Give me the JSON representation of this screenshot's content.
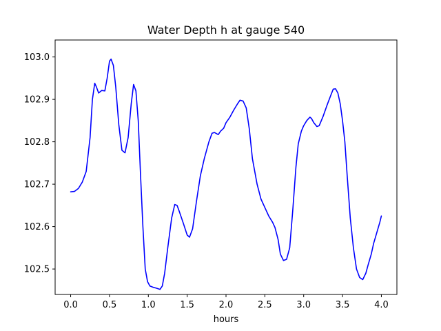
{
  "chart_data": {
    "type": "line",
    "title": "Water Depth h at gauge 540",
    "xlabel": "hours",
    "ylabel": "",
    "xlim": [
      -0.2,
      4.2
    ],
    "ylim": [
      102.44,
      103.04
    ],
    "grid": false,
    "line_color": "#0000ff",
    "xticks": [
      0.0,
      0.5,
      1.0,
      1.5,
      2.0,
      2.5,
      3.0,
      3.5,
      4.0
    ],
    "xtick_labels": [
      "0.0",
      "0.5",
      "1.0",
      "1.5",
      "2.0",
      "2.5",
      "3.0",
      "3.5",
      "4.0"
    ],
    "yticks": [
      102.5,
      102.6,
      102.7,
      102.8,
      102.9,
      103.0
    ],
    "ytick_labels": [
      "102.5",
      "102.6",
      "102.7",
      "102.8",
      "102.9",
      "103.0"
    ],
    "series": [
      {
        "x": [
          0.0,
          0.05,
          0.1,
          0.15,
          0.2,
          0.25,
          0.28,
          0.31,
          0.33,
          0.36,
          0.4,
          0.44,
          0.47,
          0.5,
          0.52,
          0.55,
          0.58,
          0.62,
          0.66,
          0.7,
          0.74,
          0.78,
          0.81,
          0.84,
          0.87,
          0.9,
          0.93,
          0.96,
          0.99,
          1.02,
          1.06,
          1.1,
          1.15,
          1.18,
          1.21,
          1.25,
          1.3,
          1.34,
          1.37,
          1.4,
          1.45,
          1.5,
          1.53,
          1.57,
          1.62,
          1.67,
          1.72,
          1.78,
          1.82,
          1.85,
          1.9,
          1.93,
          1.97,
          2.0,
          2.05,
          2.1,
          2.15,
          2.18,
          2.22,
          2.26,
          2.3,
          2.34,
          2.4,
          2.45,
          2.5,
          2.55,
          2.6,
          2.63,
          2.67,
          2.7,
          2.74,
          2.78,
          2.82,
          2.86,
          2.9,
          2.93,
          2.97,
          3.0,
          3.04,
          3.08,
          3.1,
          3.13,
          3.17,
          3.2,
          3.25,
          3.3,
          3.35,
          3.38,
          3.41,
          3.44,
          3.47,
          3.5,
          3.53,
          3.56,
          3.6,
          3.64,
          3.68,
          3.72,
          3.76,
          3.8,
          3.83,
          3.87,
          3.9,
          3.94,
          3.98,
          4.0
        ],
        "y": [
          102.682,
          102.683,
          102.69,
          102.705,
          102.73,
          102.81,
          102.9,
          102.938,
          102.93,
          102.915,
          102.921,
          102.92,
          102.95,
          102.99,
          102.995,
          102.98,
          102.93,
          102.84,
          102.78,
          102.774,
          102.81,
          102.89,
          102.935,
          102.92,
          102.85,
          102.72,
          102.6,
          102.5,
          102.47,
          102.46,
          102.457,
          102.455,
          102.452,
          102.46,
          102.49,
          102.55,
          102.62,
          102.652,
          102.65,
          102.635,
          102.608,
          102.58,
          102.575,
          102.595,
          102.66,
          102.72,
          102.76,
          102.8,
          102.82,
          102.822,
          102.817,
          102.825,
          102.832,
          102.845,
          102.858,
          102.875,
          102.89,
          102.898,
          102.896,
          102.88,
          102.83,
          102.76,
          102.7,
          102.665,
          102.645,
          102.625,
          102.61,
          102.598,
          102.57,
          102.535,
          102.52,
          102.523,
          102.55,
          102.64,
          102.74,
          102.795,
          102.825,
          102.838,
          102.85,
          102.858,
          102.855,
          102.845,
          102.836,
          102.838,
          102.86,
          102.886,
          102.91,
          102.924,
          102.925,
          102.915,
          102.89,
          102.85,
          102.8,
          102.72,
          102.62,
          102.55,
          102.5,
          102.48,
          102.475,
          102.49,
          102.51,
          102.535,
          102.56,
          102.585,
          102.61,
          102.625
        ]
      }
    ]
  }
}
